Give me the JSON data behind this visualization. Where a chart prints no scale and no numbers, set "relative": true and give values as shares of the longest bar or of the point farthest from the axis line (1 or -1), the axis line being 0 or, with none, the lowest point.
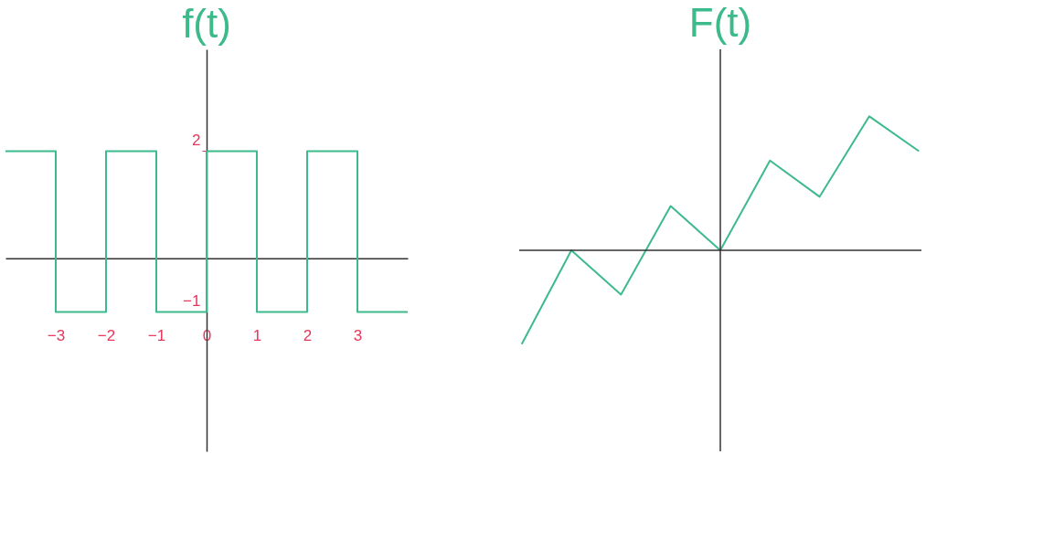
{
  "chart_data": [
    {
      "type": "step",
      "title": "f(t)",
      "x": [
        -4,
        -3,
        -2,
        -1,
        0,
        1,
        2,
        3,
        4
      ],
      "values": [
        2,
        -1,
        2,
        -1,
        2,
        -1,
        2,
        -1,
        -1
      ],
      "color": "#3dba8c",
      "xlim": [
        -4,
        4
      ],
      "ylim": [
        -3.6,
        3.9
      ],
      "xticks": [
        -3,
        -2,
        -1,
        0,
        1,
        2,
        3
      ],
      "yticks": [
        2,
        -1
      ],
      "grid": false
    },
    {
      "type": "line",
      "title": "F(t)",
      "categories": [
        null,
        null,
        null,
        null,
        null,
        null,
        null,
        null,
        null
      ],
      "values": [
        -0.7,
        0,
        -0.33,
        0.33,
        0,
        0.67,
        0.4,
        1,
        0.74
      ],
      "color": "#3dba8c",
      "relative": true,
      "grid": false
    }
  ]
}
